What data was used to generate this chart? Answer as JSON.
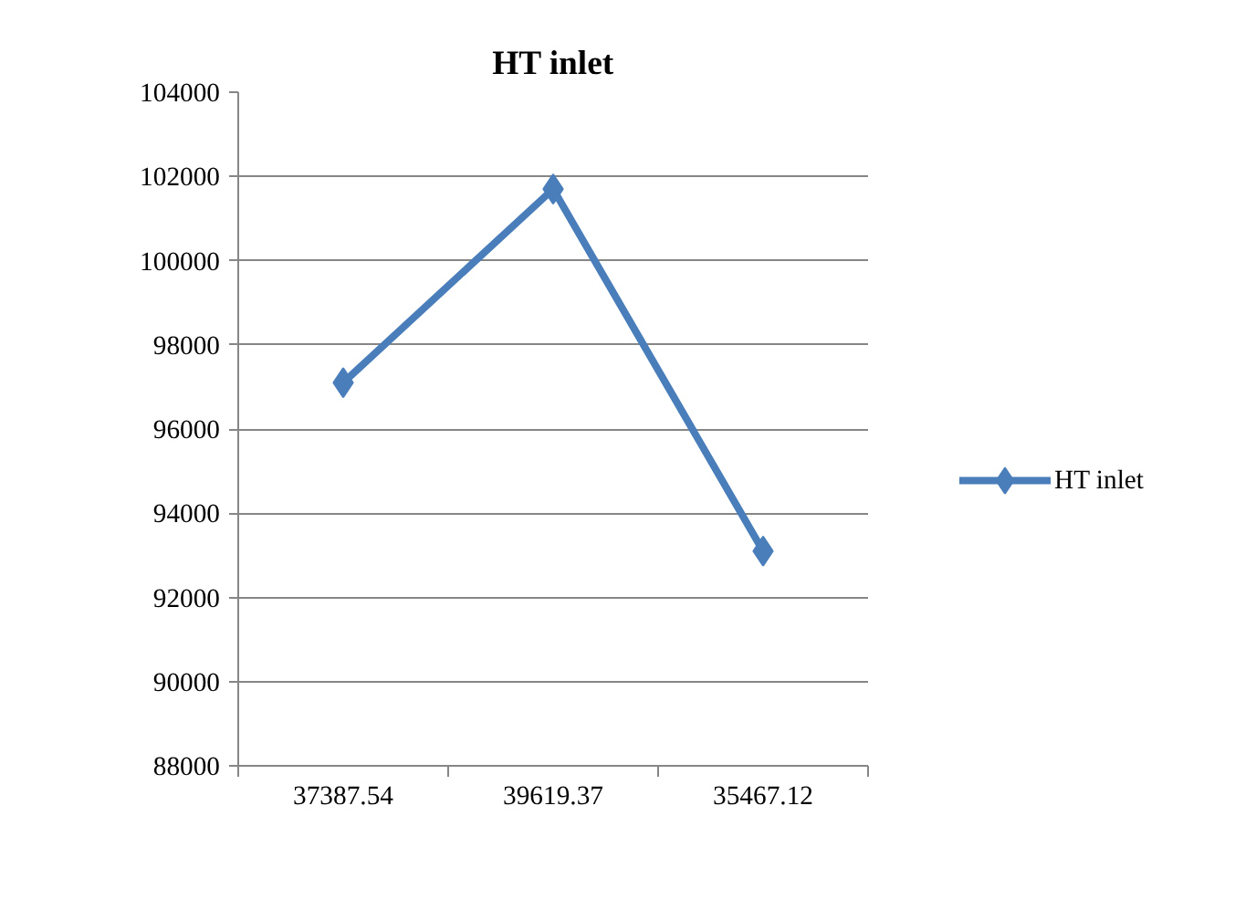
{
  "chart_data": {
    "type": "line",
    "title": "HT inlet",
    "categories": [
      "37387.54",
      "39619.37",
      "35467.12"
    ],
    "series": [
      {
        "name": "HT inlet",
        "color": "#4a7ebb",
        "values": [
          97100,
          101700,
          93100
        ]
      }
    ],
    "ylim": [
      88000,
      104000
    ],
    "yticks": [
      88000,
      90000,
      92000,
      94000,
      96000,
      98000,
      100000,
      102000,
      104000
    ],
    "grid": "y",
    "legend": "right",
    "marker": "diamond",
    "line_style": "solid"
  }
}
